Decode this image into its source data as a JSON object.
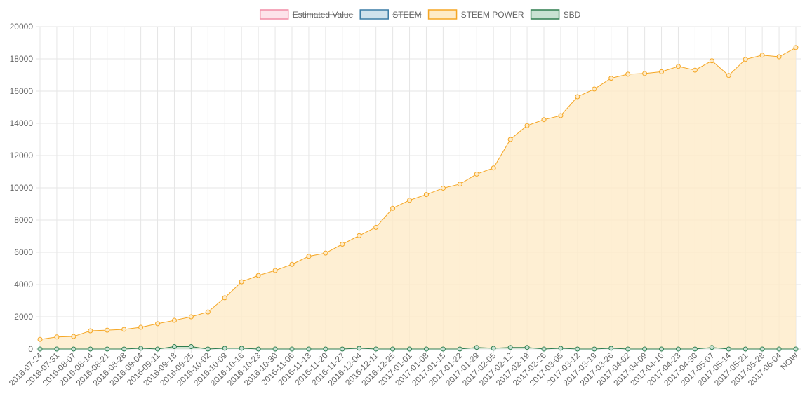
{
  "chart_data": {
    "type": "line",
    "categories": [
      "2016-07-24",
      "2016-07-31",
      "2016-08-07",
      "2016-08-14",
      "2016-08-21",
      "2016-08-28",
      "2016-09-04",
      "2016-09-11",
      "2016-09-18",
      "2016-09-25",
      "2016-10-02",
      "2016-10-09",
      "2016-10-16",
      "2016-10-23",
      "2016-10-30",
      "2016-11-06",
      "2016-11-13",
      "2016-11-20",
      "2016-11-27",
      "2016-12-04",
      "2016-12-11",
      "2016-12-25",
      "2017-01-01",
      "2017-01-08",
      "2017-01-15",
      "2017-01-22",
      "2017-01-29",
      "2017-02-05",
      "2017-02-12",
      "2017-02-19",
      "2017-02-26",
      "2017-03-05",
      "2017-03-12",
      "2017-03-19",
      "2017-03-26",
      "2017-04-02",
      "2017-04-09",
      "2017-04-16",
      "2017-04-23",
      "2017-04-30",
      "2017-05-07",
      "2017-05-14",
      "2017-05-21",
      "2017-05-28",
      "2017-06-04",
      "NOW"
    ],
    "series": [
      {
        "name": "Estimated Value",
        "color": "#f28ca5",
        "fill_color": "#fde3ea",
        "hidden": true
      },
      {
        "name": "STEEM",
        "color": "#3a7ca5",
        "fill_color": "#cfe2ec",
        "hidden": true
      },
      {
        "name": "STEEM POWER",
        "color": "#f5a623",
        "fill_color": "#feebc8",
        "hidden": false,
        "values": [
          600,
          750,
          780,
          1130,
          1170,
          1220,
          1350,
          1570,
          1780,
          2000,
          2300,
          3180,
          4170,
          4560,
          4870,
          5250,
          5750,
          5950,
          6500,
          7030,
          7550,
          8730,
          9230,
          9580,
          9980,
          10230,
          10850,
          11230,
          13000,
          13860,
          14230,
          14480,
          15650,
          16130,
          16800,
          17050,
          17090,
          17200,
          17530,
          17300,
          17880,
          16970,
          17970,
          18230,
          18130,
          18700
        ]
      },
      {
        "name": "SBD",
        "color": "#2e7d4f",
        "fill_color": "#c8e2d2",
        "hidden": false,
        "values": [
          0,
          0,
          0,
          0,
          0,
          0,
          50,
          0,
          150,
          150,
          0,
          50,
          50,
          0,
          0,
          0,
          0,
          0,
          0,
          50,
          0,
          0,
          0,
          0,
          0,
          0,
          100,
          50,
          100,
          100,
          0,
          50,
          0,
          0,
          50,
          0,
          0,
          0,
          0,
          0,
          100,
          0,
          0,
          0,
          0,
          0
        ]
      }
    ],
    "ylim": [
      0,
      20000
    ],
    "yticks": [
      0,
      2000,
      4000,
      6000,
      8000,
      10000,
      12000,
      14000,
      16000,
      18000,
      20000
    ],
    "grid": true
  }
}
